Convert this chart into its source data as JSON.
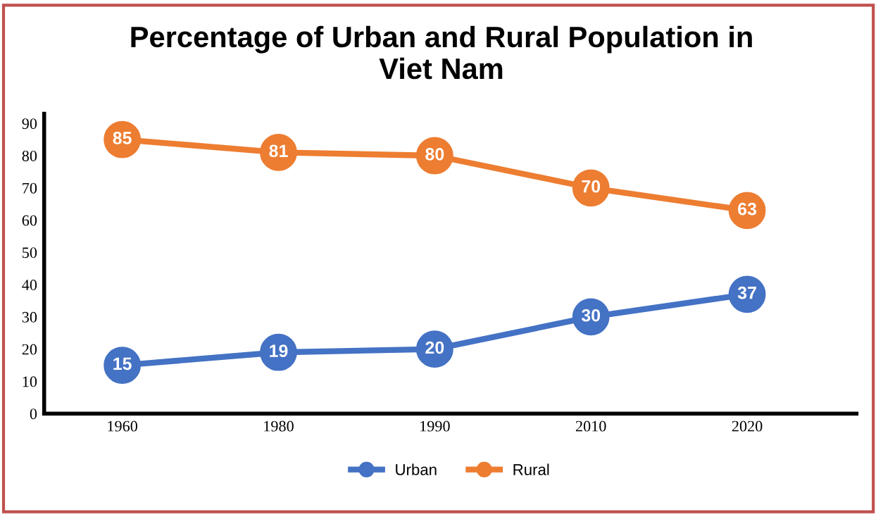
{
  "chart_data": {
    "type": "line",
    "title": "Percentage of Urban and Rural Population in\nViet Nam",
    "categories": [
      "1960",
      "1980",
      "1990",
      "2010",
      "2020"
    ],
    "series": [
      {
        "name": "Urban",
        "color": "#4472c4",
        "values": [
          15,
          19,
          20,
          30,
          37
        ]
      },
      {
        "name": "Rural",
        "color": "#ed7d31",
        "values": [
          85,
          81,
          80,
          70,
          63
        ]
      }
    ],
    "ylim": [
      0,
      93
    ],
    "yticks": [
      0,
      10,
      20,
      30,
      40,
      50,
      60,
      70,
      80,
      90
    ],
    "grid": false,
    "legend": "bottom",
    "marker": "circle",
    "line_style": "solid",
    "data_labels": true
  }
}
